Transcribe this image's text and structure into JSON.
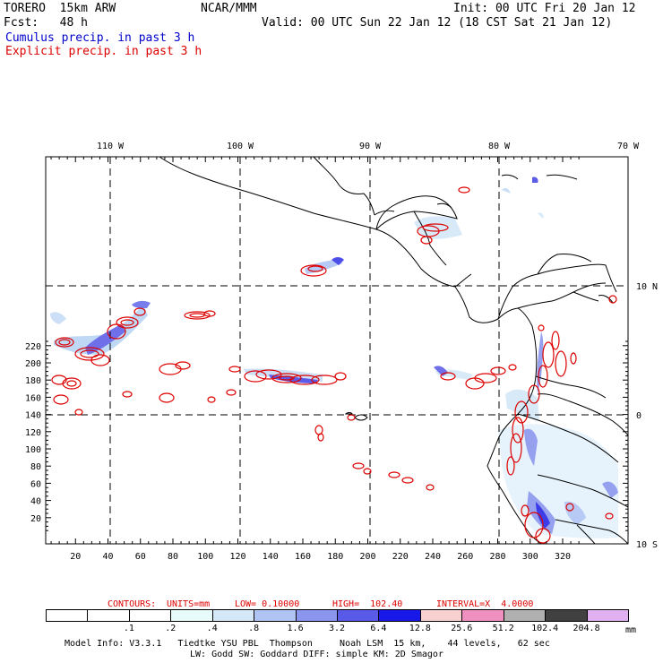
{
  "header": {
    "model": "TORERO  15km ARW",
    "org": "NCAR/MMM",
    "init": "Init: 00 UTC Fri 20 Jan 12",
    "fcst": "Fcst:   48 h",
    "valid": "Valid: 00 UTC Sun 22 Jan 12 (18 CST Sat 21 Jan 12)",
    "line_cumulus": "Cumulus precip. in past 3 h",
    "line_explicit": "Explicit precip. in past 3 h"
  },
  "axes": {
    "top_lon_labels": [
      "110 W",
      "100 W",
      "90 W",
      "80 W",
      "70 W"
    ],
    "right_lat_labels": [
      "10 N",
      "0",
      "10 S"
    ],
    "x_ticks": [
      "20",
      "40",
      "60",
      "80",
      "100",
      "120",
      "140",
      "160",
      "180",
      "200",
      "220",
      "240",
      "260",
      "280",
      "300",
      "320"
    ],
    "y_ticks": [
      "20",
      "40",
      "60",
      "80",
      "100",
      "120",
      "140",
      "160",
      "180",
      "200",
      "220"
    ]
  },
  "contour_info": {
    "contours": "CONTOURS:",
    "units": "UNITS=mm",
    "low": "LOW= 0.10000",
    "high": "HIGH=  102.40",
    "interval": "INTERVAL=X  4.0000"
  },
  "colorbar": {
    "labels": [
      ".1",
      ".2",
      ".4",
      ".8",
      "1.6",
      "3.2",
      "6.4",
      "12.8",
      "25.6",
      "51.2",
      "102.4",
      "204.8"
    ],
    "unit": "mm",
    "colors": [
      "#ffffff",
      "#ffffff",
      "#ffffff",
      "#e8fbfb",
      "#d4e8f8",
      "#b0c4f4",
      "#8a96ee",
      "#5a5ae8",
      "#1818e8",
      "#f8d0d0",
      "#f090c0",
      "#b0b0b0",
      "#404040",
      "#e0b0f0"
    ]
  },
  "footer": {
    "line1": "Model Info: V3.3.1   Tiedtke YSU PBL  Thompson     Noah LSM  15 km,    44 levels,   62 sec",
    "line2": "LW: Godd SW: Goddard DIFF: simple KM: 2D Smagor"
  },
  "colors": {
    "cumulus": "#0000cc",
    "explicit": "#dd0000"
  }
}
